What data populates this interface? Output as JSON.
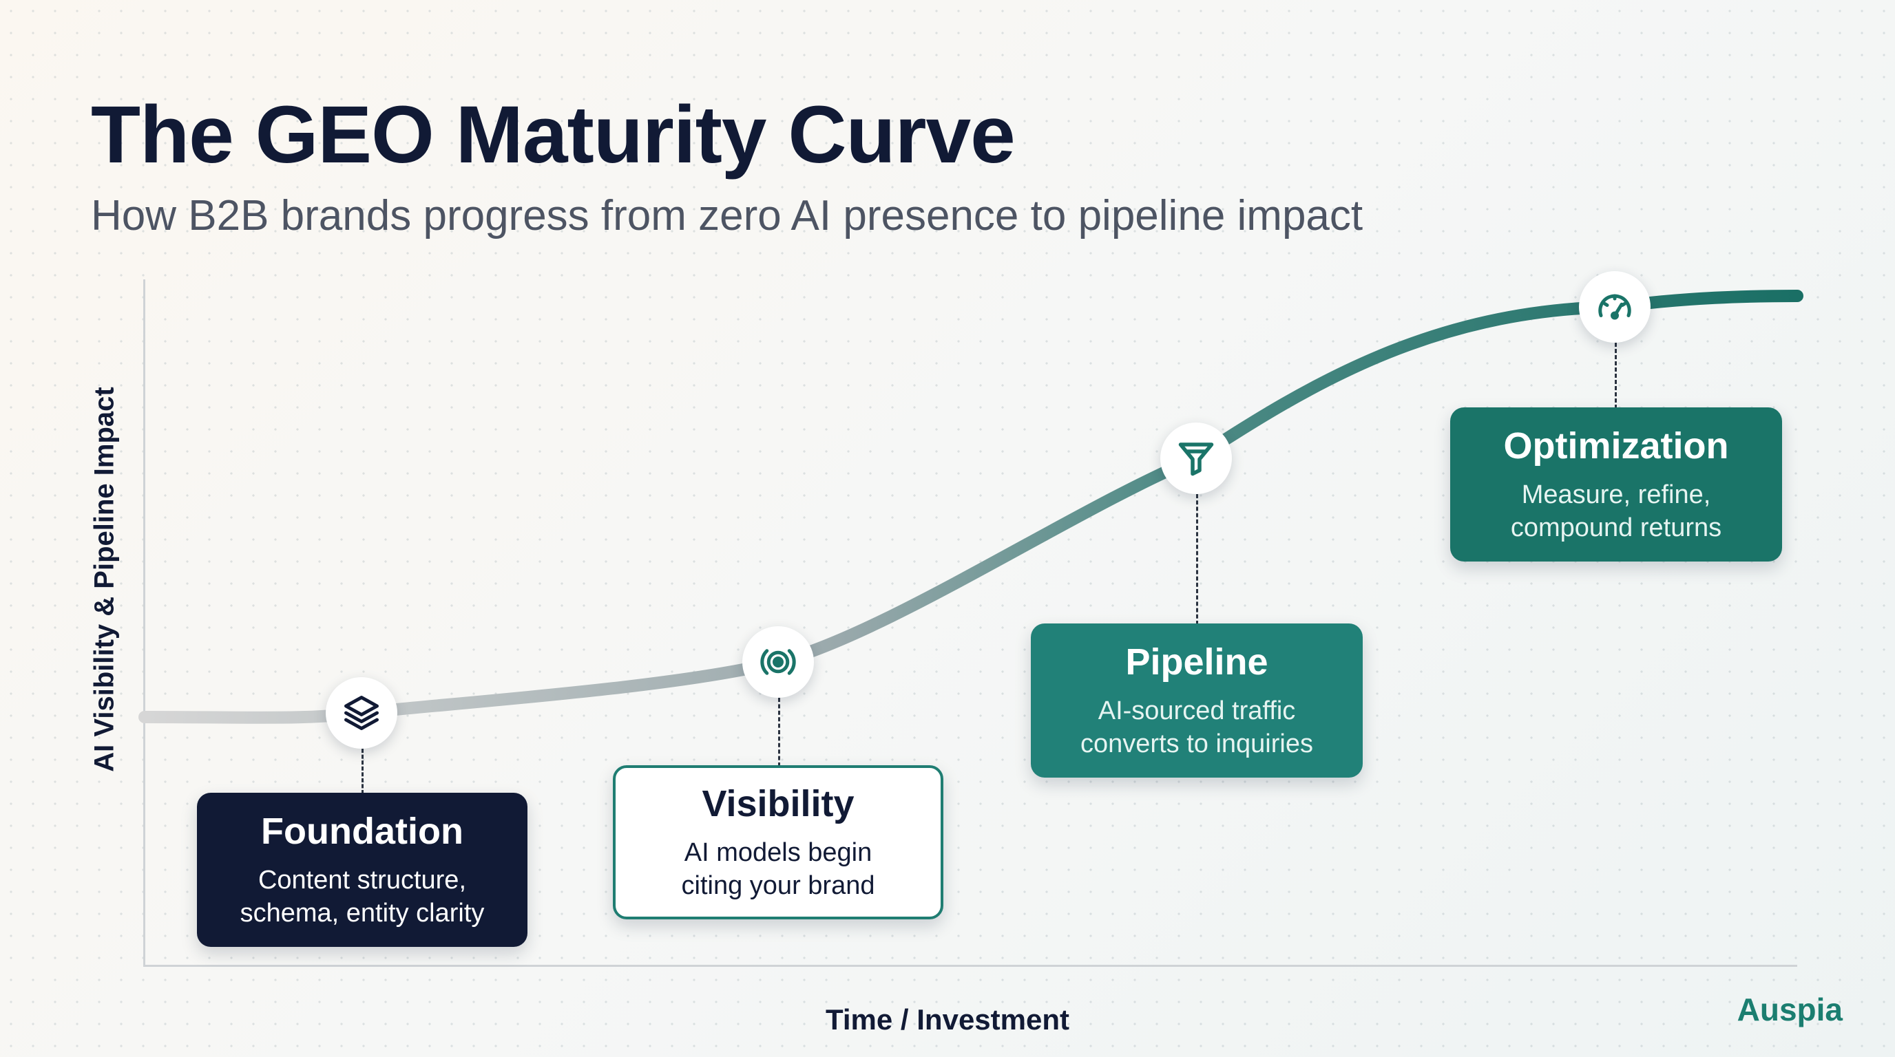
{
  "header": {
    "title": "The GEO Maturity Curve",
    "subtitle": "How B2B brands progress from zero AI presence to pipeline impact"
  },
  "axes": {
    "y_label": "AI Visibility & Pipeline Impact",
    "x_label": "Time / Investment"
  },
  "stages": [
    {
      "title": "Foundation",
      "description": "Content structure,\nschema, entity clarity",
      "icon": "layers-icon"
    },
    {
      "title": "Visibility",
      "description": "AI models begin\nciting your brand",
      "icon": "broadcast-icon"
    },
    {
      "title": "Pipeline",
      "description": "AI-sourced traffic\nconverts to inquiries",
      "icon": "funnel-icon"
    },
    {
      "title": "Optimization",
      "description": "Measure, refine,\ncompound returns",
      "icon": "gauge-icon"
    }
  ],
  "colors": {
    "navy": "#111a35",
    "teal": "#1a7468",
    "curve_start": "#d6d6d6",
    "curve_end": "#1a6f65"
  },
  "footer": {
    "brand": "Auspia"
  }
}
